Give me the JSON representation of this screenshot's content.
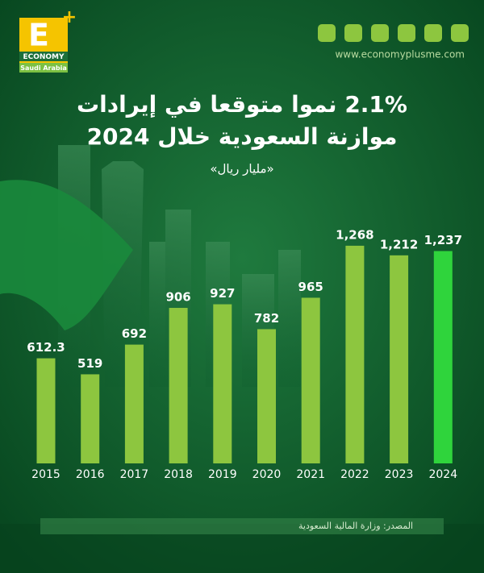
{
  "chart_data": {
    "type": "bar",
    "brand": {
      "letter": "E",
      "name": "ECONOMY",
      "region": "Saudi Arabia",
      "website": "www.economyplusme.com"
    },
    "title": [
      "2.1% نموا متوقعا في إيرادات",
      "موازنة السعودية خلال 2024"
    ],
    "subtitle": "«مليار ريال»",
    "categories": [
      "2015",
      "2016",
      "2017",
      "2018",
      "2019",
      "2020",
      "2021",
      "2022",
      "2023",
      "2024"
    ],
    "values": [
      612.3,
      519,
      692,
      906,
      927,
      782,
      965,
      1268,
      1212,
      1237
    ],
    "value_labels": [
      "612.3",
      "519",
      "692",
      "906",
      "927",
      "782",
      "965",
      "1,268",
      "1,212",
      "1,237"
    ],
    "colors": [
      "#8dc63f",
      "#8dc63f",
      "#8dc63f",
      "#8dc63f",
      "#8dc63f",
      "#8dc63f",
      "#8dc63f",
      "#8dc63f",
      "#8dc63f",
      "#2fd43c"
    ],
    "source": "المصدر: وزارة المالية السعودية"
  }
}
